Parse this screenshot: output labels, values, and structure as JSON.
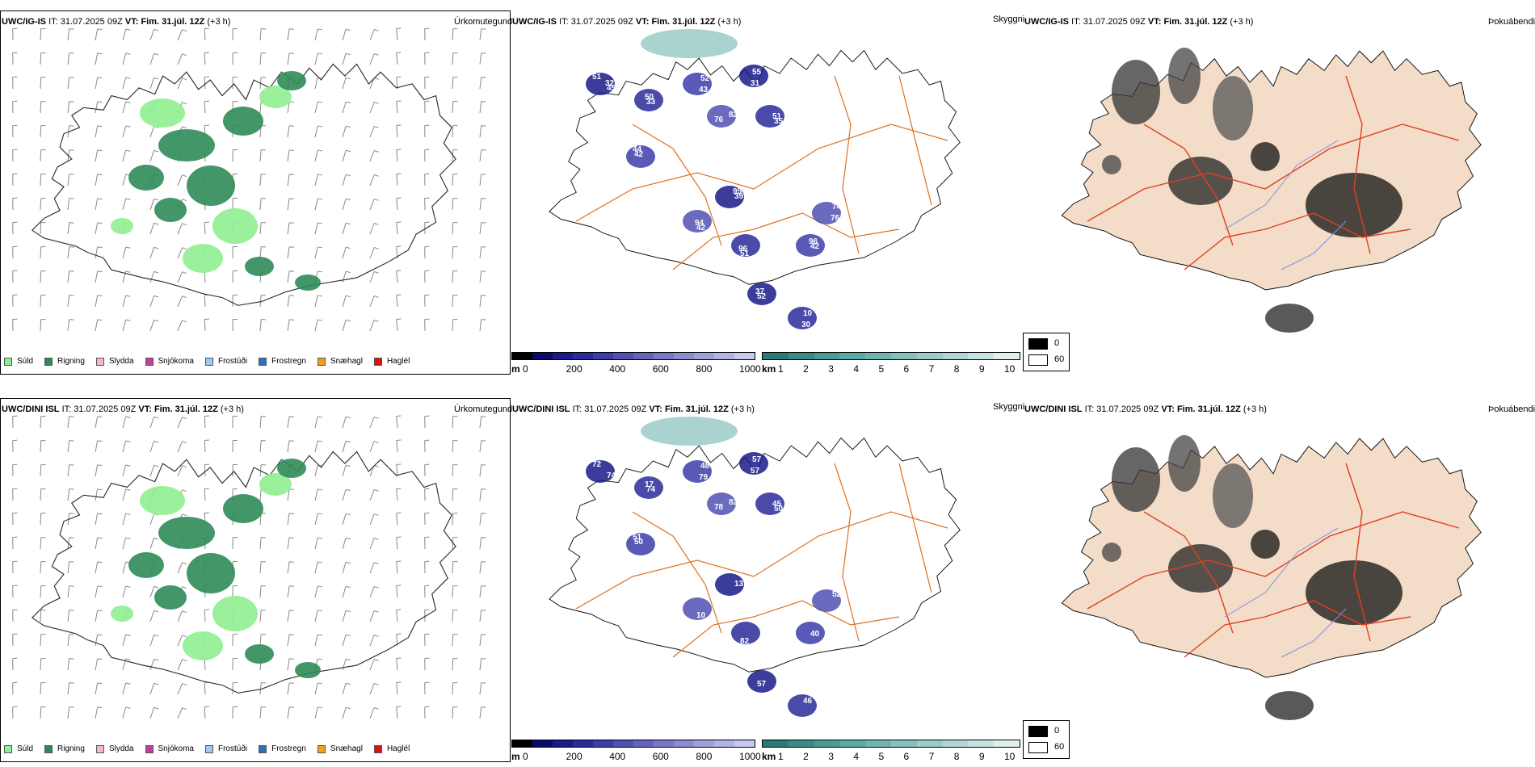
{
  "rows": [
    {
      "id": "row1",
      "panels": {
        "precip": {
          "model": "UWC/IG-IS",
          "it_label": "IT:",
          "it_value": "31.07.2025 09Z",
          "vt_label": "VT:",
          "vt_value": "Fim. 31.júl. 12Z",
          "lead": "(+3 h)",
          "right_title": "Úrkomutegund"
        },
        "cloud": {
          "model": "UWC/IG-IS",
          "it_label": "IT:",
          "it_value": "31.07.2025 09Z",
          "vt_label": "VT:",
          "vt_value": "Fim. 31.júl. 12Z",
          "lead": "(+3 h)",
          "right_title": "Skyggni",
          "labels": [
            "51",
            "33",
            "52",
            "76",
            "55",
            "35",
            "42",
            "42",
            "39",
            "51",
            "42",
            "74",
            "52",
            "10",
            "45",
            "50",
            "43",
            "82",
            "31",
            "51",
            "44",
            "94",
            "95",
            "96",
            "96",
            "76",
            "37",
            "30",
            "32"
          ]
        },
        "fog": {
          "model": "UWC/IG-IS",
          "it_label": "IT:",
          "it_value": "31.07.2025 09Z",
          "vt_label": "VT:",
          "vt_value": "Fim. 31.júl. 12Z",
          "lead": "(+3 h)",
          "right_title": "Þokuábendi"
        }
      }
    },
    {
      "id": "row2",
      "panels": {
        "precip": {
          "model": "UWC/DINI ISL",
          "it_label": "IT:",
          "it_value": "31.07.2025 09Z",
          "vt_label": "VT:",
          "vt_value": "Fim. 31.júl. 12Z",
          "lead": "(+3 h)",
          "right_title": "Úrkomutegund"
        },
        "cloud": {
          "model": "UWC/DINI ISL",
          "it_label": "IT:",
          "it_value": "31.07.2025 09Z",
          "vt_label": "VT:",
          "vt_value": "Fim. 31.júl. 12Z",
          "lead": "(+3 h)",
          "right_title": "Skyggni",
          "labels": [
            "72",
            "74",
            "48",
            "78",
            "57",
            "50",
            "50",
            "10",
            "13",
            "82",
            "40",
            "52",
            "57",
            "46",
            "74",
            "17",
            "79",
            "82",
            "57",
            "45",
            "51"
          ]
        },
        "fog": {
          "model": "UWC/DINI ISL",
          "it_label": "IT:",
          "it_value": "31.07.2025 09Z",
          "vt_label": "VT:",
          "vt_value": "Fim. 31.júl. 12Z",
          "lead": "(+3 h)",
          "right_title": "Þokuábendi"
        }
      }
    }
  ],
  "precip_legend": [
    {
      "label": "Súld",
      "color": "#90ee90"
    },
    {
      "label": "Rigning",
      "color": "#2e8b57"
    },
    {
      "label": "Slydda",
      "color": "#f4b6d2"
    },
    {
      "label": "Snjókoma",
      "color": "#c040a0"
    },
    {
      "label": "Frostúði",
      "color": "#a0c8f0"
    },
    {
      "label": "Frostregn",
      "color": "#3070c0"
    },
    {
      "label": "Snæhagl",
      "color": "#f0a020"
    },
    {
      "label": "Haglél",
      "color": "#e01010"
    }
  ],
  "ceiling_bar": {
    "unit": "m",
    "ticks": [
      "0",
      "200",
      "400",
      "600",
      "800",
      "1000"
    ],
    "colors": [
      "#000000",
      "#0a0a6a",
      "#1a1a8a",
      "#2a2a9a",
      "#3c3caa",
      "#5050b4",
      "#6464bc",
      "#7878c6",
      "#8c8cd0",
      "#a0a0da",
      "#b4b4e4",
      "#c8c8ee"
    ]
  },
  "visibility_bar": {
    "unit": "km",
    "ticks": [
      "1",
      "2",
      "3",
      "4",
      "5",
      "6",
      "7",
      "8",
      "9",
      "10"
    ],
    "colors": [
      "#2a7a78",
      "#3a8a88",
      "#4a9a96",
      "#5ca8a4",
      "#70b4b0",
      "#86c0bc",
      "#9ccbc8",
      "#b2d6d4",
      "#c8e2e0",
      "#e0eeee"
    ]
  },
  "fog_box": {
    "top": "0",
    "bottom": "60"
  },
  "colors": {
    "coast": "#333333",
    "road": "#e07020",
    "river": "#8090e0",
    "land_fog": "#f3dcc8",
    "road_fog": "#e04020"
  }
}
